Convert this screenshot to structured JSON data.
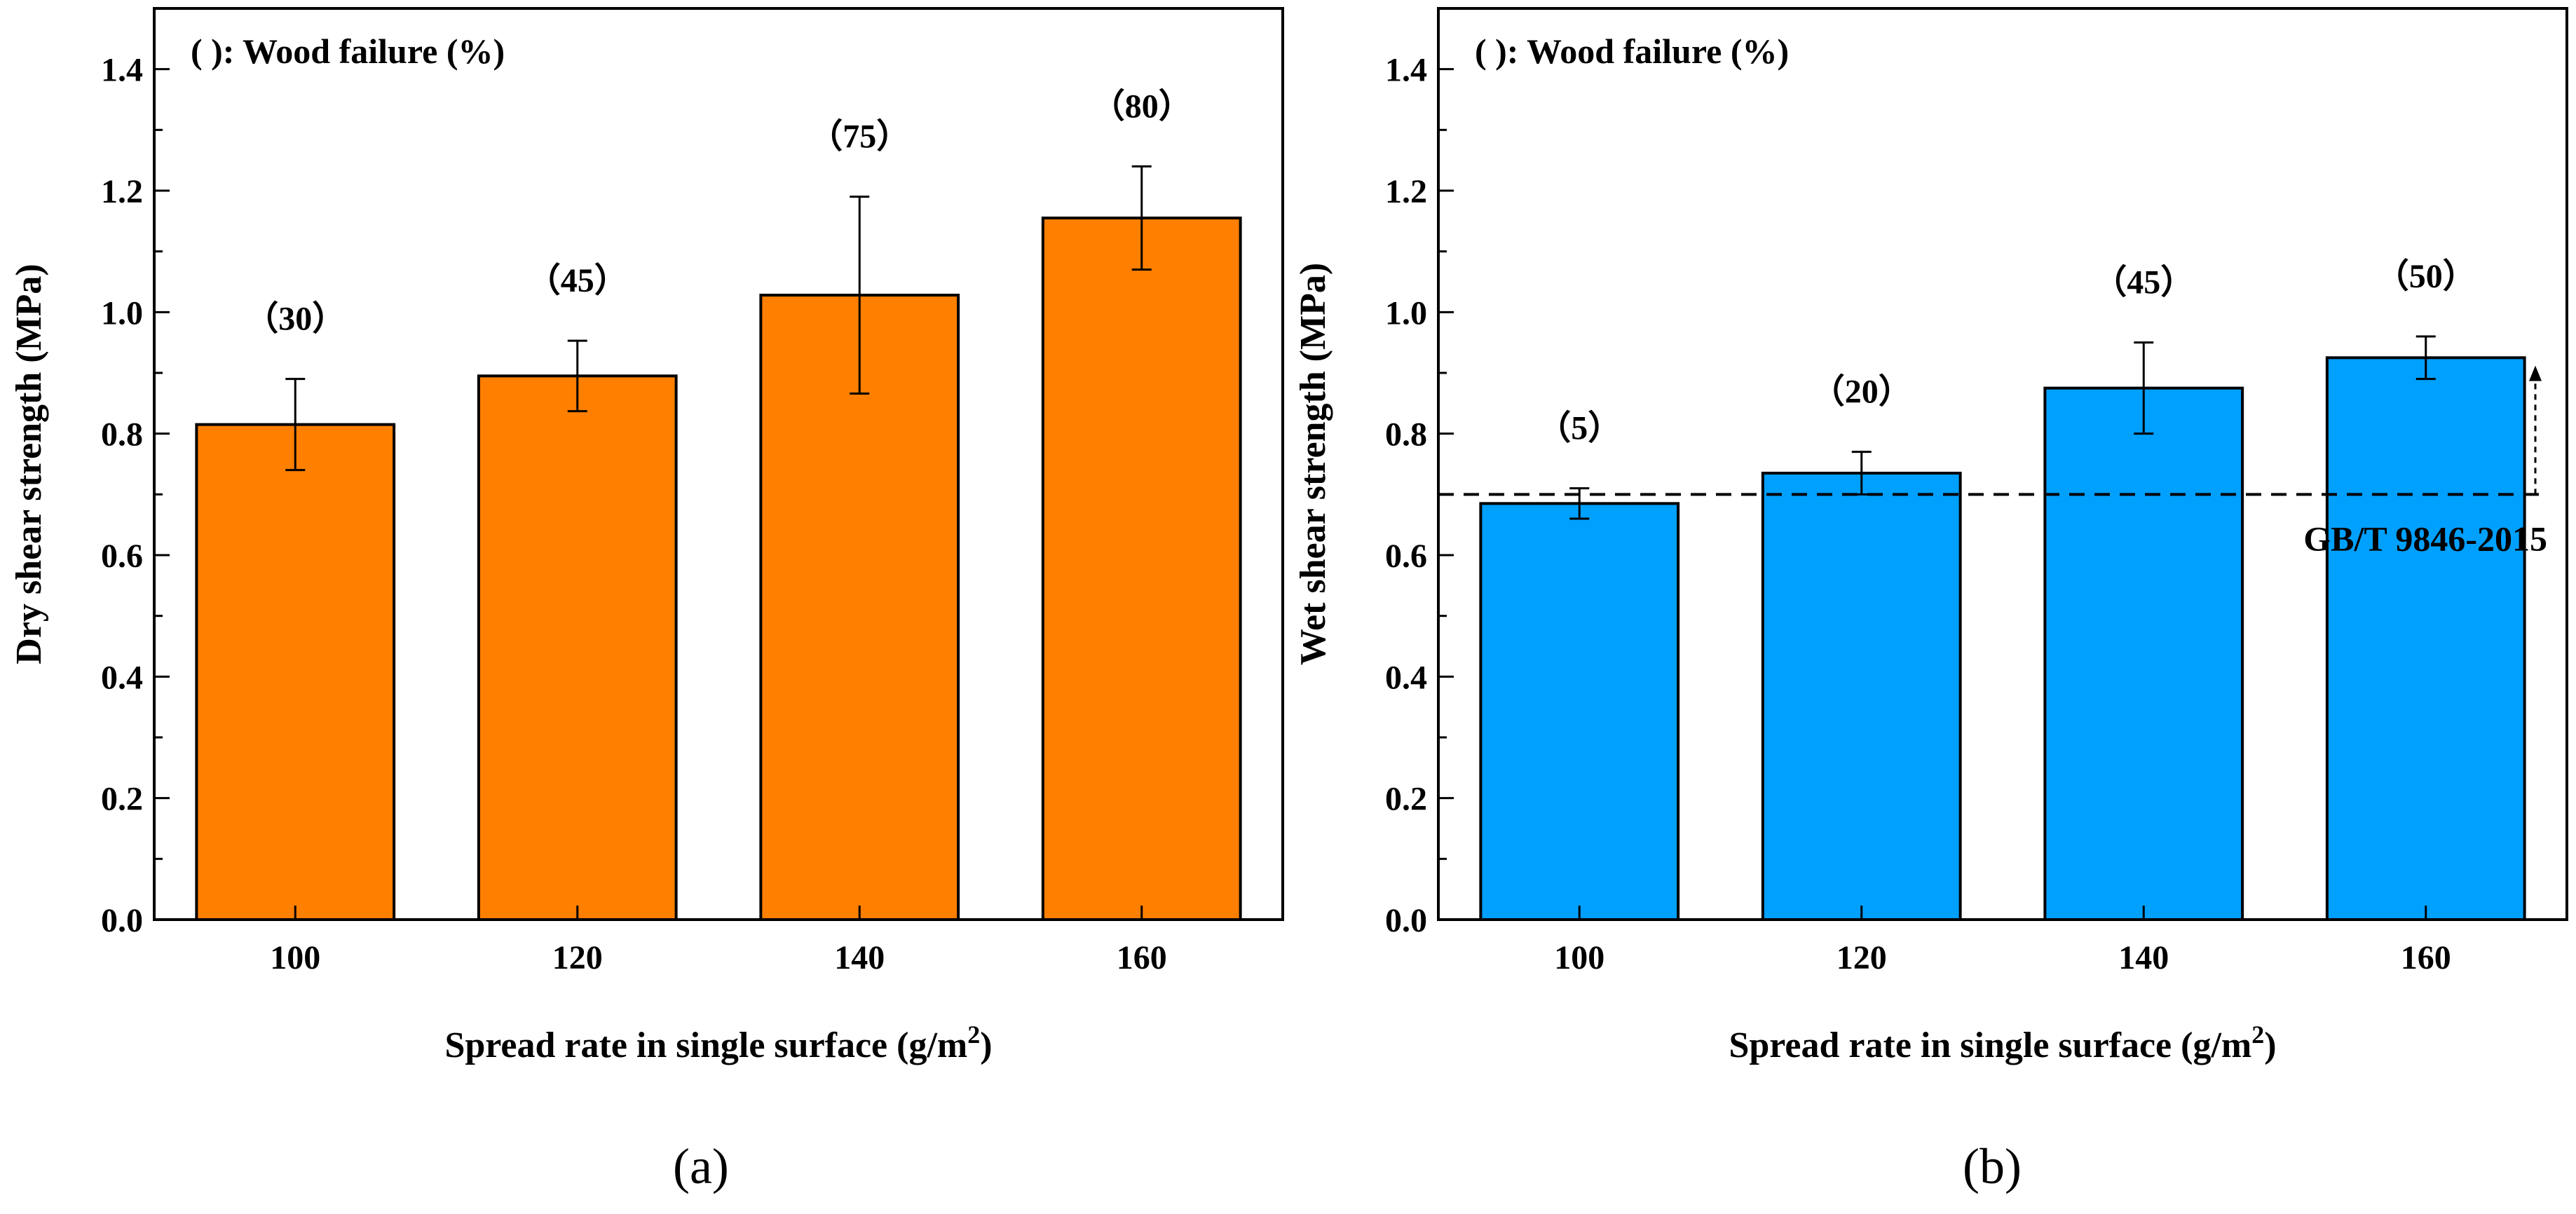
{
  "chart_data": [
    {
      "id": "a",
      "type": "bar",
      "panel_label": "(a)",
      "note": "( ): Wood failure (%)",
      "xlabel": "Spread rate in single surface (g/m",
      "xlabel_sup": "2",
      "xlabel_close": ")",
      "ylabel": "Dry shear strength (MPa)",
      "categories": [
        "100",
        "120",
        "140",
        "160"
      ],
      "values": [
        0.815,
        0.895,
        1.028,
        1.155
      ],
      "errors": [
        0.075,
        0.058,
        0.162,
        0.085
      ],
      "wood_failure": [
        "（30）",
        "（45）",
        "（75）",
        "（80）"
      ],
      "bar_color": "#FF7F00",
      "ylim": [
        0,
        1.5
      ],
      "yticks": [
        "0.0",
        "0.2",
        "0.4",
        "0.6",
        "0.8",
        "1.0",
        "1.2",
        "1.4"
      ],
      "ytick_values": [
        0,
        0.2,
        0.4,
        0.6,
        0.8,
        1.0,
        1.2,
        1.4
      ]
    },
    {
      "id": "b",
      "type": "bar",
      "panel_label": "(b)",
      "note": "( ): Wood failure (%)",
      "xlabel": "Spread rate in single surface (g/m",
      "xlabel_sup": "2",
      "xlabel_close": ")",
      "ylabel": "Wet shear strength (MPa)",
      "categories": [
        "100",
        "120",
        "140",
        "160"
      ],
      "values": [
        0.685,
        0.735,
        0.875,
        0.925
      ],
      "errors": [
        0.025,
        0.035,
        0.075,
        0.035
      ],
      "wood_failure": [
        "（5）",
        "（20）",
        "（45）",
        "（50）"
      ],
      "bar_color": "#00A0FF",
      "ylim": [
        0,
        1.5
      ],
      "yticks": [
        "0.0",
        "0.2",
        "0.4",
        "0.6",
        "0.8",
        "1.0",
        "1.2",
        "1.4"
      ],
      "ytick_values": [
        0,
        0.2,
        0.4,
        0.6,
        0.8,
        1.0,
        1.2,
        1.4
      ],
      "reference_line": {
        "value": 0.7,
        "label": "GB/T 9846-2015"
      }
    }
  ]
}
